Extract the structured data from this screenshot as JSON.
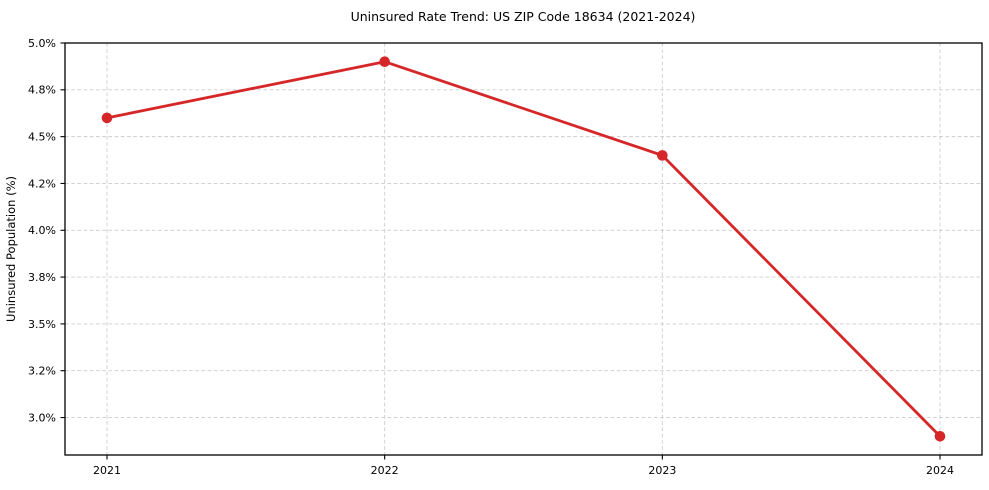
{
  "figure": {
    "title": "Uninsured Rate Trend: US ZIP Code 18634 (2021-2024)",
    "ylabel": "Uninsured Population (%)"
  },
  "chart_data": {
    "type": "line",
    "title": "Uninsured Rate Trend: US ZIP Code 18634 (2021-2024)",
    "xlabel": "",
    "ylabel": "Uninsured Population (%)",
    "categories": [
      "2021",
      "2022",
      "2023",
      "2024"
    ],
    "series": [
      {
        "name": "Uninsured Population (%)",
        "values": [
          4.6,
          4.9,
          4.4,
          2.9
        ]
      }
    ],
    "ylim": [
      2.8,
      5.0
    ],
    "yticks": [
      {
        "value": 5.0,
        "label": "5.0%"
      },
      {
        "value": 4.75,
        "label": "4.8%"
      },
      {
        "value": 4.5,
        "label": "4.5%"
      },
      {
        "value": 4.25,
        "label": "4.2%"
      },
      {
        "value": 4.0,
        "label": "4.0%"
      },
      {
        "value": 3.75,
        "label": "3.8%"
      },
      {
        "value": 3.5,
        "label": "3.5%"
      },
      {
        "value": 3.25,
        "label": "3.2%"
      },
      {
        "value": 3.0,
        "label": "3.0%"
      }
    ],
    "grid": true,
    "grid_style": "dashed",
    "legend": false,
    "marker": "circle",
    "colors": {
      "line": "#d62728",
      "marker": "#d62728",
      "grid": "#cccccc",
      "axis": "#000000",
      "text": "#000000",
      "background": "#ffffff"
    }
  }
}
